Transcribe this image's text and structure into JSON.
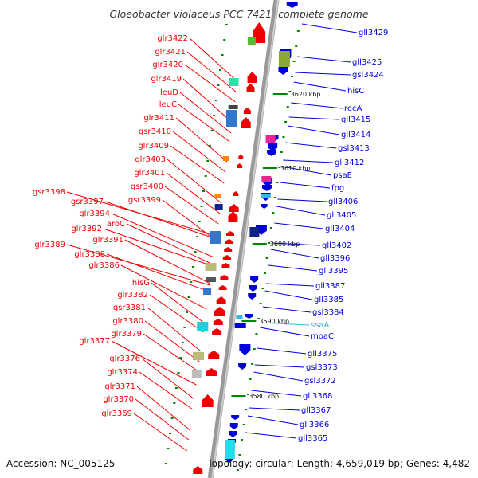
{
  "title": "Gloeobacter violaceus PCC 7421, complete genome",
  "accession": "Accession: NC_005125",
  "topology": "Topology: circular; Length: 4,659,019 bp; Genes: 4,482",
  "scale_labels": [
    "3620 kbp",
    "3610 kbp",
    "3600 kbp",
    "3590 kbp",
    "3580 kbp"
  ],
  "colors": {
    "forward": "#ee0000",
    "reverse": "#0000dd",
    "rna": "#33bbdd",
    "backbone": "#888888",
    "tick": "#008800"
  },
  "left_labels": [
    "glr3422",
    "glr3421",
    "glr3420",
    "glr3419",
    "leuD",
    "leuC",
    "glr3411",
    "gsr3410",
    "glr3409",
    "glr3403",
    "glr3401",
    "gsr3400",
    "gsr3398",
    "gsr3399",
    "gsr3397",
    "glr3394",
    "aroC",
    "glr3392",
    "glr3391",
    "glr3389",
    "glr3388",
    "glr3386",
    "hisG",
    "glr3382",
    "gsr3381",
    "glr3380",
    "glr3379",
    "glr3377",
    "glr3376",
    "glr3374",
    "glr3371",
    "glr3370",
    "glr3369"
  ],
  "right_labels": [
    "gll3429",
    "gll3425",
    "gsl3424",
    "hisC",
    "recA",
    "gll3415",
    "gll3414",
    "gsl3413",
    "gll3412",
    "psaE",
    "fpg",
    "gll3406",
    "gll3405",
    "gll3404",
    "gll3402",
    "gll3396",
    "gll3395",
    "gll3387",
    "gll3385",
    "gsl3384",
    "ssaA",
    "moaC",
    "gll3375",
    "gsl3373",
    "gsl3372",
    "gll3368",
    "gll3367",
    "gll3366",
    "gll3365"
  ]
}
